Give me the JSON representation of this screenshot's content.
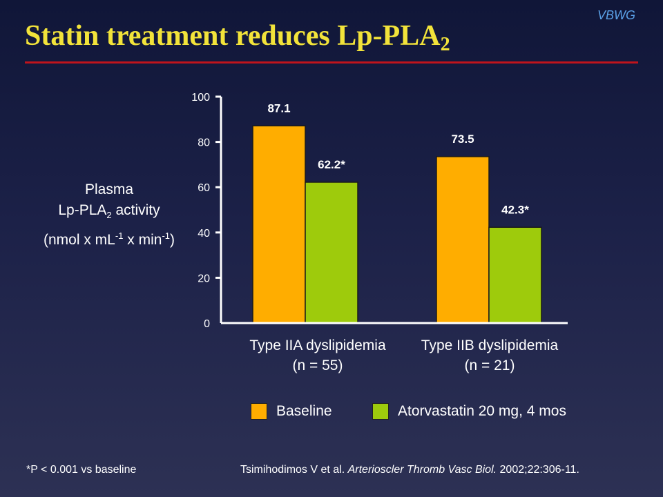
{
  "brand": "VBWG",
  "title": {
    "main": "Statin treatment reduces Lp-PLA",
    "sub": "2"
  },
  "y_axis_title": {
    "line1": "Plasma",
    "line2_a": "Lp-PLA",
    "line2_sub": "2",
    "line2_b": " activity",
    "line3_a": "(nmol x mL",
    "line3_sup1": "-1",
    "line3_b": " x min",
    "line3_sup2": "-1",
    "line3_c": ")"
  },
  "colors": {
    "baseline": "#ffad00",
    "atorvastatin": "#9ecb0c",
    "title": "#f2e33a",
    "rule": "#c0141c",
    "brand": "#5aa0e6"
  },
  "chart_data": {
    "type": "bar",
    "categories": [
      {
        "line1": "Type IIA dyslipidemia",
        "line2": "(n = 55)"
      },
      {
        "line1": "Type IIB dyslipidemia",
        "line2": "(n = 21)"
      }
    ],
    "series": [
      {
        "name": "Baseline",
        "values": [
          87.1,
          73.5
        ],
        "labels": [
          "87.1",
          "73.5"
        ]
      },
      {
        "name": "Atorvastatin 20 mg, 4 mos",
        "values": [
          62.2,
          42.3
        ],
        "labels": [
          "62.2*",
          "42.3*"
        ]
      }
    ],
    "yticks": [
      "0",
      "20",
      "40",
      "60",
      "80",
      "100"
    ],
    "ylim": [
      0,
      100
    ],
    "grid": false,
    "legend_position": "bottom"
  },
  "footnote": "*P < 0.001 vs baseline",
  "citation": {
    "authors": "Tsimihodimos V et al. ",
    "journal": "Arterioscler Thromb Vasc Biol.",
    "details": " 2002;22:306-11."
  }
}
